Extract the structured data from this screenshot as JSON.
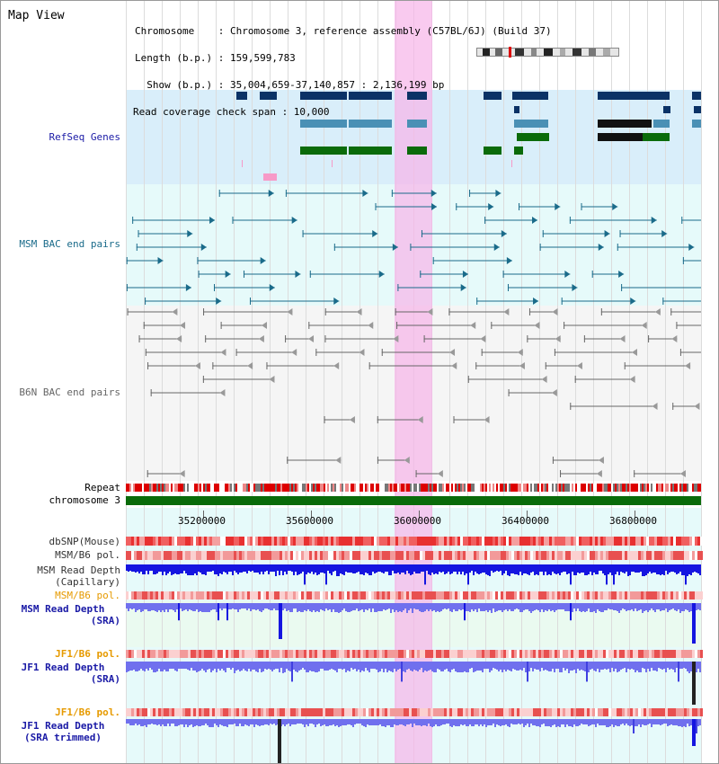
{
  "panel_title": "Map View",
  "header": {
    "lines": [
      "Chromosome    : Chromosome 3, reference assembly (C57BL/6J) (Build 37)",
      "Length (b.p.) : 159,599,783",
      "  Show (b.p.) : 35,004,659-37,140,857 : 2,136,199 bp",
      "Read coverage check span : 10,000"
    ]
  },
  "tracks": {
    "refseq": "RefSeq Genes",
    "msm_bac": "MSM BAC end pairs",
    "b6n_bac": "B6N BAC end pairs",
    "repeat": "Repeat",
    "chrom": "chromosome 3",
    "dbsnp": "dbSNP(Mouse)",
    "msm_b6_pol_1": "MSM/B6 pol.",
    "msm_depth_cap_1": "MSM Read Depth",
    "msm_depth_cap_2": "(Capillary)",
    "msm_b6_pol_2": "MSM/B6 pol.",
    "msm_depth_sra_1": "MSM Read Depth",
    "msm_depth_sra_2": "(SRA)",
    "jf1_b6_pol_1": "JF1/B6 pol.",
    "jf1_depth_sra_1": "JF1 Read Depth",
    "jf1_depth_sra_2": "(SRA)",
    "jf1_b6_pol_2": "JF1/B6 pol.",
    "jf1_depth_trim_1": "JF1 Read Depth",
    "jf1_depth_trim_2": "(SRA trimmed)"
  },
  "axis": {
    "ticks": [
      "35200000",
      "35600000",
      "36000000",
      "36400000",
      "36800000"
    ]
  },
  "colors": {
    "refseq_bg": "#d9eefa",
    "bac_bg": "#e6fafa",
    "highlight": "#f7b4e8",
    "gene_dark": "#0b3266",
    "gene_mid": "#4a90b5",
    "gene_green": "#0a6b0a",
    "bac_blue": "#1a6b8a",
    "bac_gray": "#666666",
    "chrom_bar": "#0a6b0a",
    "depth_dark_blue": "#1515e0",
    "depth_light_blue": "#7070ee",
    "snp_red": "#e83030",
    "label_blue": "#1a1aa6",
    "label_orange": "#e69a00",
    "label_teal": "#1a6b8a"
  }
}
